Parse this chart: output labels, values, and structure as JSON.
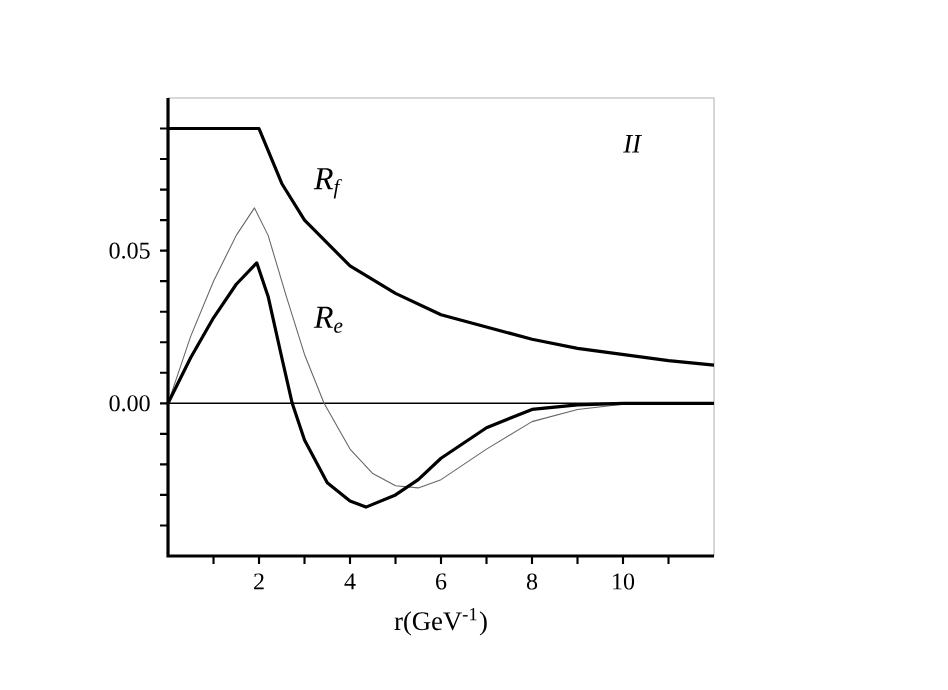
{
  "chart_data": {
    "type": "line",
    "xlabel": "r(GeV$^{-1}$)",
    "xlim": [
      0,
      12
    ],
    "ylim": [
      -0.05,
      0.1
    ],
    "xticks": [
      {
        "value": 1,
        "label": null
      },
      2,
      {
        "value": 3,
        "label": null
      },
      4,
      {
        "value": 5,
        "label": null
      },
      6,
      {
        "value": 7,
        "label": null
      },
      8,
      {
        "value": 9,
        "label": null
      },
      10,
      {
        "value": 11,
        "label": null
      }
    ],
    "yticks": [
      {
        "value": -0.04,
        "label": null
      },
      {
        "value": -0.03,
        "label": null
      },
      {
        "value": -0.02,
        "label": null
      },
      {
        "value": -0.01,
        "label": null
      },
      {
        "value": 0,
        "label": "0.00"
      },
      {
        "value": 0.01,
        "label": null
      },
      {
        "value": 0.02,
        "label": null
      },
      {
        "value": 0.03,
        "label": null
      },
      {
        "value": 0.04,
        "label": null
      },
      {
        "value": 0.05,
        "label": "0.05"
      },
      {
        "value": 0.06,
        "label": null
      },
      {
        "value": 0.07,
        "label": null
      },
      {
        "value": 0.08,
        "label": null
      },
      {
        "value": 0.09,
        "label": null
      }
    ],
    "series": [
      {
        "name": "R$_{f}$",
        "color": "#000000",
        "x": [
          0,
          1,
          2,
          2.5,
          3,
          4,
          5,
          6,
          7,
          8,
          9,
          10,
          11,
          12
        ],
        "values": [
          0.09,
          0.09,
          0.09,
          0.072,
          0.06,
          0.045,
          0.036,
          0.029,
          0.025,
          0.021,
          0.018,
          0.016,
          0.014,
          0.0125
        ]
      },
      {
        "name": "R$_{e}$",
        "color": "#666666",
        "x": [
          0,
          0.5,
          1,
          1.5,
          1.9,
          2.2,
          2.6,
          3,
          3.43,
          4,
          4.5,
          5,
          5.5,
          6,
          7,
          8,
          9,
          10,
          11,
          12
        ],
        "values": [
          0,
          0.022,
          0.04,
          0.055,
          0.064,
          0.055,
          0.035,
          0.016,
          0,
          -0.015,
          -0.023,
          -0.027,
          -0.0277,
          -0.025,
          -0.015,
          -0.006,
          -0.002,
          -0.0003,
          0,
          0
        ]
      },
      {
        "color": "#000000",
        "x": [
          0,
          0.5,
          1,
          1.5,
          1.95,
          2.2,
          2.5,
          2.73,
          3,
          3.5,
          4,
          4.35,
          5,
          5.5,
          6,
          7,
          8,
          9,
          10,
          12
        ],
        "values": [
          0,
          0.015,
          0.028,
          0.039,
          0.046,
          0.035,
          0.015,
          0,
          -0.012,
          -0.026,
          -0.032,
          -0.034,
          -0.03,
          -0.025,
          -0.018,
          -0.008,
          -0.002,
          -0.0005,
          0,
          0
        ]
      }
    ],
    "ref_lines": [
      {
        "axis": "y",
        "value": 0,
        "color": "#000000"
      }
    ],
    "annotations": [
      "II"
    ],
    "grid": false,
    "marker": "none",
    "line_style": "solid"
  }
}
